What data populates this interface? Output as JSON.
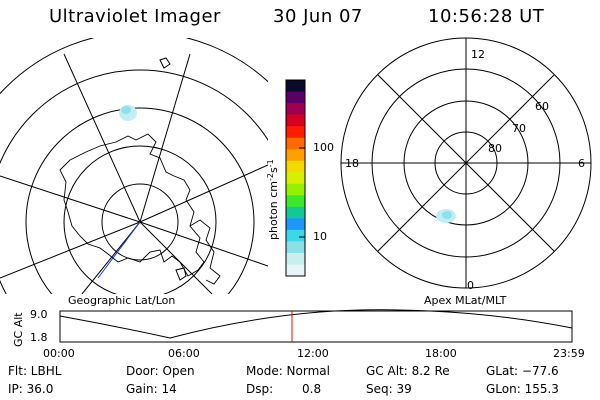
{
  "header": {
    "instrument": "Ultraviolet Imager",
    "date": "30 Jun 07",
    "time": "10:56:28 UT"
  },
  "left_map": {
    "caption": "Geographic Lat/Lon"
  },
  "right_map": {
    "caption": "Apex MLat/MLT",
    "mlt_labels": {
      "top": "12",
      "right": "6",
      "bottom": "0",
      "left": "18"
    },
    "lat_labels": [
      "60",
      "70",
      "80"
    ]
  },
  "colorbar": {
    "unit_label": "photon cm",
    "unit_sup1": "-2",
    "unit_mid": "s",
    "unit_sup2": "-1",
    "ticks": [
      "100",
      "10"
    ],
    "colors": [
      "#0a0a2a",
      "#5a006a",
      "#a00050",
      "#d80020",
      "#ff1a00",
      "#ff6a00",
      "#ffa000",
      "#f4d800",
      "#d8f000",
      "#96f000",
      "#3ce82a",
      "#14c896",
      "#1e96ff",
      "#3cd8e8",
      "#8ae0e6",
      "#c8eef0",
      "#e6f6f8"
    ]
  },
  "altitude_plot": {
    "ylabel": "GC Alt",
    "ytick_top": "9.0",
    "ytick_bottom": "1.8",
    "time_ticks": [
      "00:00",
      "06:00",
      "12:00",
      "18:00",
      "23:59"
    ],
    "current_marker_color": "#ff0000"
  },
  "status": {
    "flt": "Flt: LBHL",
    "ip": "IP: 36.0",
    "door": "Door: Open",
    "gain": "Gain: 14",
    "mode": "Mode: Normal",
    "dsp": "Dsp:",
    "dsp_value": "0.8",
    "gc_alt": "GC Alt: 8.2 Re",
    "seq": "Seq: 39",
    "glat": "GLat: −77.6",
    "glon": "GLon: 155.3"
  }
}
